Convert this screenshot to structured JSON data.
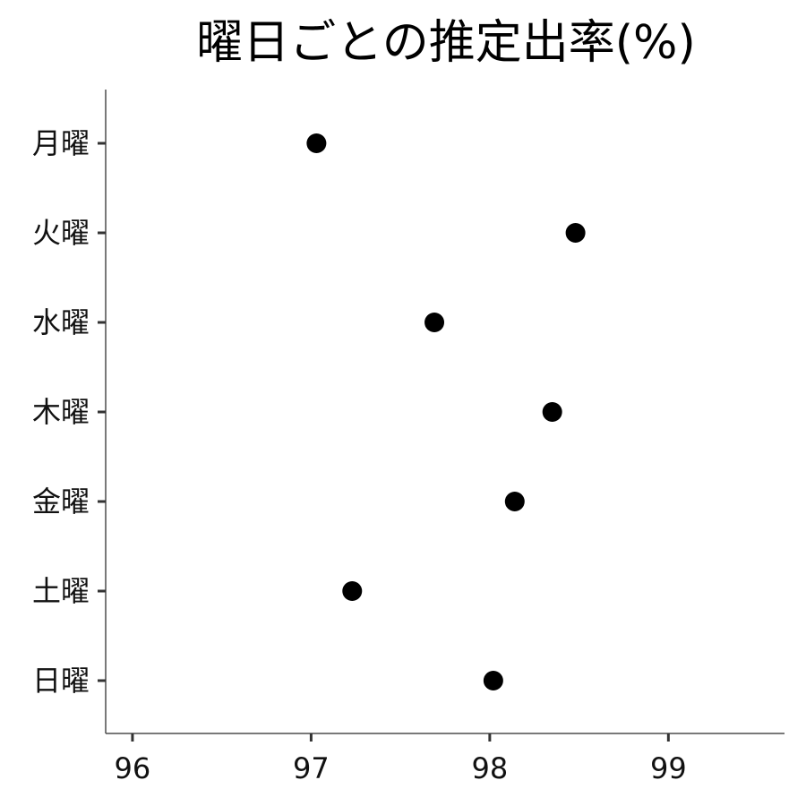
{
  "chart_data": {
    "type": "scatter",
    "title": "曜日ごとの推定出率(%)",
    "xlabel": "",
    "ylabel": "",
    "xlim": [
      95.85,
      99.65
    ],
    "xticks": [
      96,
      97,
      98,
      99
    ],
    "xtick_labels": [
      "96",
      "97",
      "98",
      "99"
    ],
    "categories": [
      "月曜",
      "火曜",
      "水曜",
      "木曜",
      "金曜",
      "土曜",
      "日曜"
    ],
    "values": [
      97.03,
      98.48,
      97.69,
      98.35,
      98.14,
      97.23,
      98.02
    ],
    "grid": false,
    "legend": "none",
    "point_color": "#000000"
  }
}
